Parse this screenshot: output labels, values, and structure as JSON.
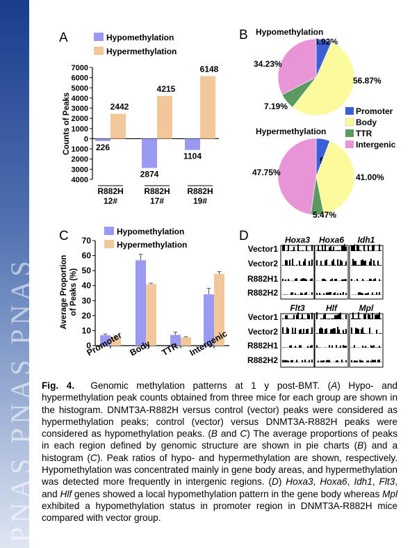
{
  "sidebar": {
    "watermark": "PNAS PNAS PNAS"
  },
  "panelA": {
    "letter": "A",
    "legend": [
      "Hypomethylation",
      "Hypermethylation"
    ],
    "ylabel": "Counts of Peaks",
    "colors": {
      "hypo": "#9a9af2",
      "hyper": "#f2c89b"
    }
  },
  "panelB": {
    "letter": "B",
    "hypo_title": "Hypomethylation",
    "hyper_title": "Hypermethylation",
    "legend": [
      "Promoter",
      "Body",
      "TTR",
      "Intergenic"
    ],
    "colors": {
      "promoter": "#3a5fd6",
      "body": "#fbfb9e",
      "ttr": "#5a9a62",
      "intergenic": "#e795d6"
    }
  },
  "panelC": {
    "letter": "C",
    "legend": [
      "Hypomethylation",
      "Hypermethylation"
    ],
    "ylabel": "Average Proportion of Peaks (%)",
    "ylabel_line1": "Average Proportion",
    "ylabel_line2": "of Peaks (%)"
  },
  "panelD": {
    "letter": "D",
    "genes_top": [
      "Hoxa3",
      "Hoxa6",
      "Idh1"
    ],
    "genes_bottom": [
      "Flt3",
      "Hlf",
      "Mpl"
    ],
    "samples": [
      "Vector1",
      "Vector2",
      "R882H1",
      "R882H2"
    ]
  },
  "chart_data": [
    {
      "type": "bar",
      "categories": [
        "R882H 12#",
        "R882H 17#",
        "R882H 19#"
      ],
      "category_lines": [
        [
          "R882H",
          "12#"
        ],
        [
          "R882H",
          "17#"
        ],
        [
          "R882H",
          "19#"
        ]
      ],
      "series": [
        {
          "name": "Hypomethylation",
          "values": [
            -226,
            -2874,
            -1104
          ],
          "labels": [
            "226",
            "2874",
            "1104"
          ]
        },
        {
          "name": "Hypermethylation",
          "values": [
            2442,
            4215,
            6148
          ],
          "labels": [
            "2442",
            "4215",
            "6148"
          ]
        }
      ],
      "ylabel": "Counts of Peaks",
      "ylim": [
        -4000,
        7000
      ],
      "yticks": [
        7000,
        6000,
        5000,
        4000,
        3000,
        2000,
        1000,
        0,
        -1000,
        -2000,
        -3000,
        -4000
      ],
      "ytick_labels": [
        "7000",
        "6000",
        "5000",
        "4000",
        "3000",
        "2000",
        "1000",
        "0",
        "1000",
        "2000",
        "3000",
        "4000"
      ]
    },
    {
      "type": "pie",
      "title": "Hypomethylation",
      "slices": [
        {
          "name": "Promoter",
          "value": 6.92,
          "label": "6.92%"
        },
        {
          "name": "Body",
          "value": 56.87,
          "label": "56.87%"
        },
        {
          "name": "TTR",
          "value": 7.19,
          "label": "7.19%"
        },
        {
          "name": "Intergenic",
          "value": 34.23,
          "label": "34.23%"
        }
      ]
    },
    {
      "type": "pie",
      "title": "Hypermethylation",
      "slices": [
        {
          "name": "Promoter",
          "value": 5.8,
          "label": "5.80%"
        },
        {
          "name": "Body",
          "value": 41.0,
          "label": "41.00%"
        },
        {
          "name": "TTR",
          "value": 5.47,
          "label": "5.47%"
        },
        {
          "name": "Intergenic",
          "value": 47.75,
          "label": "47.75%"
        }
      ]
    },
    {
      "type": "bar",
      "categories": [
        "Promoter",
        "Body",
        "TTR",
        "Intergenic"
      ],
      "series": [
        {
          "name": "Hypomethylation",
          "values": [
            6.9,
            56.9,
            7.2,
            34.2
          ],
          "errors": [
            0.8,
            4.0,
            1.8,
            4.0
          ]
        },
        {
          "name": "Hypermethylation",
          "values": [
            5.8,
            41.0,
            5.5,
            47.8
          ],
          "errors": [
            0.6,
            0.6,
            0.4,
            1.5
          ]
        }
      ],
      "ylabel": "Average Proportion of Peaks (%)",
      "ylim": [
        0,
        70
      ],
      "yticks": [
        0,
        10,
        20,
        30,
        40,
        50,
        60,
        70
      ]
    }
  ],
  "caption": {
    "fig_label": "Fig. 4.",
    "segments": [
      {
        "t": "Genomic methylation patterns at 1 y post-BMT. (",
        "i": false
      },
      {
        "t": "A",
        "i": true
      },
      {
        "t": ") Hypo- and hypermethylation peak counts obtained from three mice for each group are shown in the histogram. DNMT3A-R882H versus control (vector) peaks were considered as hypermethylation peaks; control (vector) versus DNMT3A-R882H peaks were considered as hypomethylation peaks. (",
        "i": false
      },
      {
        "t": "B",
        "i": true
      },
      {
        "t": " and ",
        "i": false
      },
      {
        "t": "C",
        "i": true
      },
      {
        "t": ") The average proportions of peaks in each region defined by genomic structure are shown in pie charts (",
        "i": false
      },
      {
        "t": "B",
        "i": true
      },
      {
        "t": ") and a histogram (",
        "i": false
      },
      {
        "t": "C",
        "i": true
      },
      {
        "t": "). Peak ratios of hypo- and hypermethylation are shown, respectively. Hypomethylation was concentrated mainly in gene body areas, and hypermethylation was detected more frequently in intergenic regions. (",
        "i": false
      },
      {
        "t": "D",
        "i": true
      },
      {
        "t": ") ",
        "i": false
      },
      {
        "t": "Hoxa3",
        "i": true
      },
      {
        "t": ", ",
        "i": false
      },
      {
        "t": "Hoxa6",
        "i": true
      },
      {
        "t": ", ",
        "i": false
      },
      {
        "t": "Idh1",
        "i": true
      },
      {
        "t": ", ",
        "i": false
      },
      {
        "t": "Flt3",
        "i": true
      },
      {
        "t": ", and ",
        "i": false
      },
      {
        "t": "Hlf",
        "i": true
      },
      {
        "t": " genes showed a local hypomethylation pattern in the gene body whereas ",
        "i": false
      },
      {
        "t": "Mpl",
        "i": true
      },
      {
        "t": " exhibited a hypomethylation status in promoter region in DNMT3A-R882H mice compared with vector group.",
        "i": false
      }
    ]
  }
}
